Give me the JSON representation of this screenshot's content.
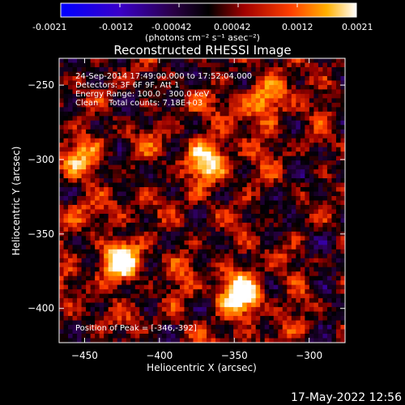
{
  "colorbar": {
    "ticks": [
      "-0.0021",
      "-0.0012",
      "-0.00042",
      "0.00042",
      "0.0012",
      "0.0021"
    ],
    "units_text": "(photons cm⁻² s⁻¹ asec⁻²)"
  },
  "title": "Reconstructed RHESSI Image",
  "annotations": {
    "time_range": "24-Sep-2014 17:49:00.000 to 17:52:04.000",
    "detectors": "Detectors: 3F 6F 9F, Att 1",
    "energy_range": "Energy Range: 100.0 - 300.0 keV",
    "clean_counts": "Clean    Total counts: 7.18E+03",
    "peak": "Position of Peak = [-346,-392]"
  },
  "timestamp": "17-May-2022 12:56",
  "chart_data": {
    "type": "heatmap",
    "title": "Reconstructed RHESSI Image",
    "xlabel": "Heliocentric X (arcsec)",
    "ylabel": "Heliocentric Y (arcsec)",
    "xlim": [
      -467,
      -276
    ],
    "ylim": [
      -423,
      -232
    ],
    "x_ticks": [
      -450,
      -400,
      -350,
      -300
    ],
    "y_ticks": [
      -250,
      -300,
      -350,
      -400
    ],
    "x_tick_labels": [
      "−450",
      "−400",
      "−350",
      "−300"
    ],
    "y_tick_labels": [
      "−250",
      "−300",
      "−350",
      "−400"
    ],
    "colorbar_range": [
      -0.0021,
      0.0021
    ],
    "peak_position": [
      -346,
      -392
    ],
    "sources": [
      {
        "x": -346,
        "y": -392,
        "intensity": 1.0
      },
      {
        "x": -427,
        "y": -368,
        "intensity": 0.85
      },
      {
        "x": -368,
        "y": -300,
        "intensity": 0.8
      },
      {
        "x": -327,
        "y": -258,
        "intensity": 0.65
      },
      {
        "x": -454,
        "y": -300,
        "intensity": 0.55
      }
    ],
    "grid": false
  }
}
